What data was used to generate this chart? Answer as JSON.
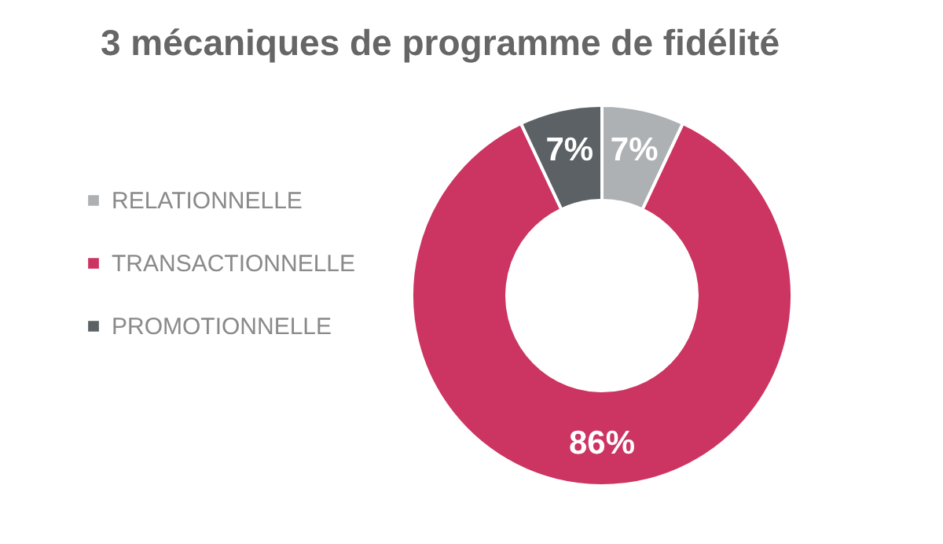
{
  "chart_data": {
    "type": "donut",
    "title": "3 mécaniques de programme de fidélité",
    "categories": [
      "RELATIONNELLE",
      "TRANSACTIONNELLE",
      "PROMOTIONNELLE"
    ],
    "values": [
      7,
      86,
      7
    ],
    "colors": [
      "#adb1b4",
      "#cc3462",
      "#5b6165"
    ],
    "value_labels": [
      "7%",
      "86%",
      "7%"
    ],
    "legend": "left"
  }
}
